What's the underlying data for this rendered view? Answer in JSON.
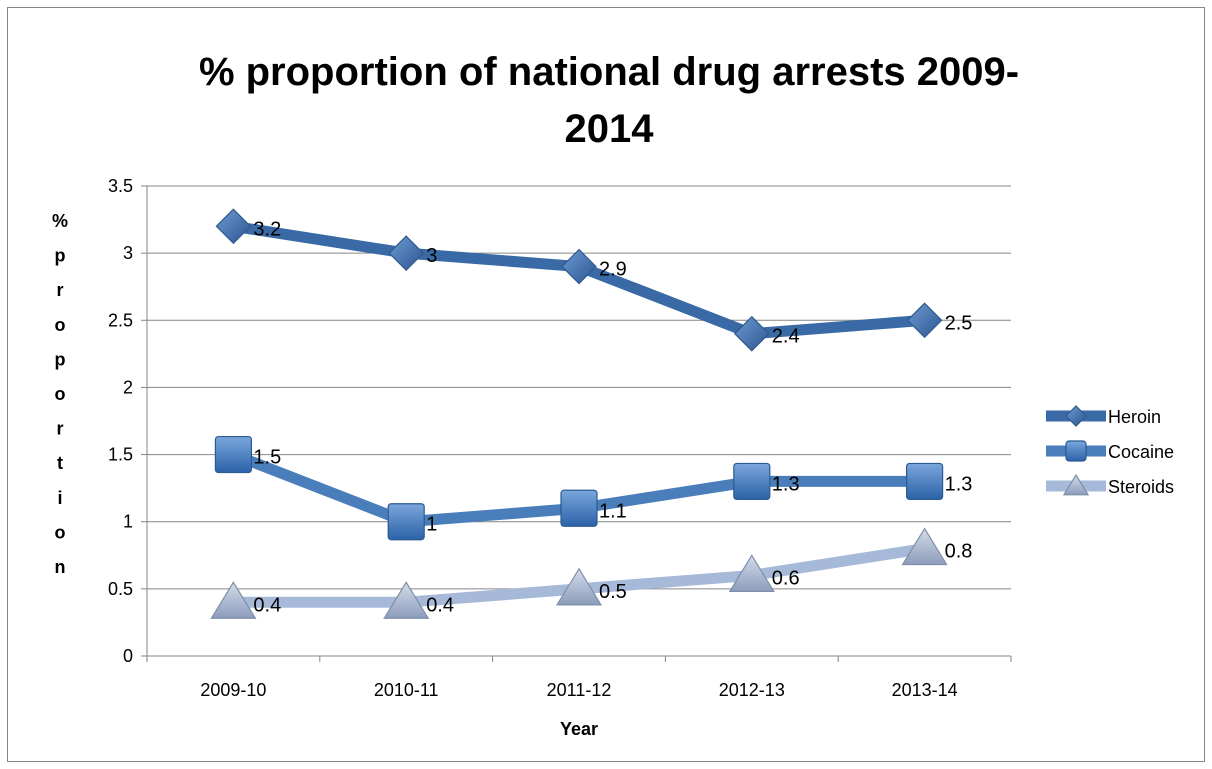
{
  "chart_data": {
    "type": "line",
    "title": "% proportion of national drug arrests 2009-2014",
    "title_lines": [
      "% proportion of national drug arrests 2009-",
      "2014"
    ],
    "xlabel": "Year",
    "ylabel": "% proportion",
    "categories": [
      "2009-10",
      "2010-11",
      "2011-12",
      "2012-13",
      "2013-14"
    ],
    "ylim": [
      0,
      3.5
    ],
    "yticks": [
      0,
      0.5,
      1,
      1.5,
      2,
      2.5,
      3,
      3.5
    ],
    "ytick_labels": [
      "0",
      "0.5",
      "1",
      "1.5",
      "2",
      "2.5",
      "3",
      "3.5"
    ],
    "grid": true,
    "legend_position": "right",
    "series": [
      {
        "name": "Heroin",
        "values": [
          3.2,
          3,
          2.9,
          2.4,
          2.5
        ],
        "labels": [
          "3.2",
          "3",
          "2.9",
          "2.4",
          "2.5"
        ],
        "color": "#3A6AA6",
        "marker": "diamond"
      },
      {
        "name": "Cocaine",
        "values": [
          1.5,
          1,
          1.1,
          1.3,
          1.3
        ],
        "labels": [
          "1.5",
          "1",
          "1.1",
          "1.3",
          "1.3"
        ],
        "color": "#4A7EBB",
        "marker": "square"
      },
      {
        "name": "Steroids",
        "values": [
          0.4,
          0.4,
          0.5,
          0.6,
          0.8
        ],
        "labels": [
          "0.4",
          "0.4",
          "0.5",
          "0.6",
          "0.8"
        ],
        "color": "#A7B9D9",
        "marker": "triangle"
      }
    ]
  }
}
